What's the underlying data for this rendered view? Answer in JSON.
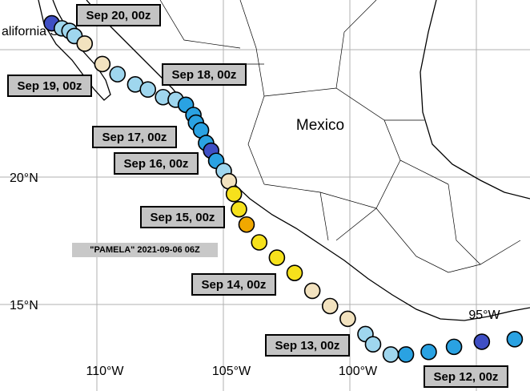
{
  "map_data": {
    "title": "\"PAMELA\" 2021-09-06 06Z",
    "place_labels": [
      "Mexico",
      "alifornia Sur"
    ],
    "lon_ticks": [
      {
        "value": -110,
        "label": "110°W"
      },
      {
        "value": -105,
        "label": "105°W"
      },
      {
        "value": -100,
        "label": "100°W"
      },
      {
        "value": -95,
        "label": "95°W"
      }
    ],
    "lat_ticks": [
      {
        "value": 20,
        "label": "20°N"
      },
      {
        "value": 15,
        "label": "15°N"
      }
    ],
    "grid": true,
    "date_labels": [
      "Sep 20, 00z",
      "Sep 19, 00z",
      "Sep 18, 00z",
      "Sep 17, 00z",
      "Sep 16, 00z",
      "Sep 15, 00z",
      "Sep 14, 00z",
      "Sep 13, 00z",
      "Sep 12, 00z"
    ],
    "track": [
      {
        "lon": -112.1,
        "lat": 26.1,
        "color": "#3f4fc4"
      },
      {
        "lon": -111.7,
        "lat": 25.9,
        "color": "#9fd6ee"
      },
      {
        "lon": -111.4,
        "lat": 25.8,
        "color": "#9fd6ee"
      },
      {
        "lon": -111.2,
        "lat": 25.6,
        "color": "#9fd6ee"
      },
      {
        "lon": -110.8,
        "lat": 25.3,
        "color": "#f2e2bf"
      },
      {
        "lon": -110.1,
        "lat": 24.5,
        "color": "#f2e2bf"
      },
      {
        "lon": -109.5,
        "lat": 24.1,
        "color": "#9fd6ee"
      },
      {
        "lon": -108.8,
        "lat": 23.7,
        "color": "#9fd6ee"
      },
      {
        "lon": -108.3,
        "lat": 23.5,
        "color": "#9fd6ee"
      },
      {
        "lon": -107.7,
        "lat": 23.2,
        "color": "#9fd6ee"
      },
      {
        "lon": -107.2,
        "lat": 23.1,
        "color": "#9fd6ee"
      },
      {
        "lon": -106.8,
        "lat": 22.9,
        "color": "#2aa2e2"
      },
      {
        "lon": -106.5,
        "lat": 22.5,
        "color": "#2aa2e2"
      },
      {
        "lon": -106.4,
        "lat": 22.2,
        "color": "#2aa2e2"
      },
      {
        "lon": -106.2,
        "lat": 21.9,
        "color": "#2aa2e2"
      },
      {
        "lon": -106.0,
        "lat": 21.4,
        "color": "#2aa2e2"
      },
      {
        "lon": -105.8,
        "lat": 21.1,
        "color": "#3f4fc4"
      },
      {
        "lon": -105.6,
        "lat": 20.7,
        "color": "#2aa2e2"
      },
      {
        "lon": -105.3,
        "lat": 20.3,
        "color": "#9fd6ee"
      },
      {
        "lon": -105.1,
        "lat": 19.9,
        "color": "#f2e2bf"
      },
      {
        "lon": -104.9,
        "lat": 19.4,
        "color": "#f6e11c"
      },
      {
        "lon": -104.7,
        "lat": 18.8,
        "color": "#f6e11c"
      },
      {
        "lon": -104.4,
        "lat": 18.2,
        "color": "#f0a800"
      },
      {
        "lon": -103.9,
        "lat": 17.5,
        "color": "#f6e11c"
      },
      {
        "lon": -103.2,
        "lat": 16.9,
        "color": "#f6e11c"
      },
      {
        "lon": -102.5,
        "lat": 16.3,
        "color": "#f6e11c"
      },
      {
        "lon": -101.8,
        "lat": 15.6,
        "color": "#f2e2bf"
      },
      {
        "lon": -101.1,
        "lat": 15.0,
        "color": "#f2e2bf"
      },
      {
        "lon": -100.4,
        "lat": 14.5,
        "color": "#f2e2bf"
      },
      {
        "lon": -99.7,
        "lat": 13.9,
        "color": "#9fd6ee"
      },
      {
        "lon": -99.4,
        "lat": 13.5,
        "color": "#9fd6ee"
      },
      {
        "lon": -98.7,
        "lat": 13.1,
        "color": "#9fd6ee"
      },
      {
        "lon": -98.1,
        "lat": 13.1,
        "color": "#2aa2e2"
      },
      {
        "lon": -97.2,
        "lat": 13.2,
        "color": "#2aa2e2"
      },
      {
        "lon": -96.2,
        "lat": 13.4,
        "color": "#2aa2e2"
      },
      {
        "lon": -95.1,
        "lat": 13.6,
        "color": "#3f4fc4"
      },
      {
        "lon": -93.8,
        "lat": 13.7,
        "color": "#2aa2e2"
      }
    ]
  }
}
